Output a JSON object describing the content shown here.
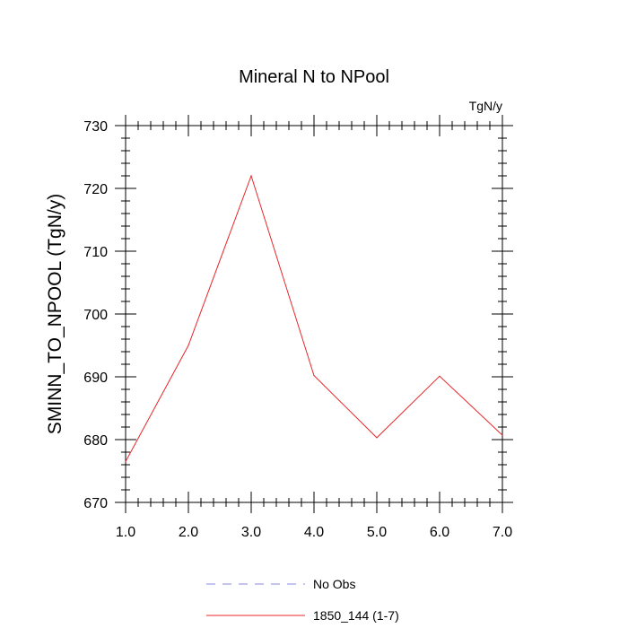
{
  "chart_data": {
    "type": "line",
    "title": "Mineral N to NPool",
    "units_label": "TgN/y",
    "ylabel": "SMINN_TO_NPOOL  (TgN/y)",
    "xlabel": "",
    "xlim": [
      1,
      7
    ],
    "ylim": [
      670,
      730
    ],
    "x_ticks": [
      1,
      2,
      3,
      4,
      5,
      6,
      7
    ],
    "x_tick_labels": [
      "1.0",
      "2.0",
      "3.0",
      "4.0",
      "5.0",
      "6.0",
      "7.0"
    ],
    "y_ticks": [
      670,
      680,
      690,
      700,
      710,
      720,
      730
    ],
    "y_tick_labels": [
      "670",
      "680",
      "690",
      "700",
      "710",
      "720",
      "730"
    ],
    "grid": false,
    "legend_placement": "bottom",
    "series": [
      {
        "name": "1850_144 (1-7)",
        "color": "#e8272a",
        "dash": "solid",
        "x": [
          1,
          2,
          3,
          4,
          5,
          6,
          7
        ],
        "values": [
          676.5,
          695.0,
          722.0,
          690.2,
          680.3,
          690.1,
          680.7
        ]
      }
    ],
    "legend": [
      {
        "label": "No Obs",
        "color": "#8a8ae6",
        "dash": "dashed"
      },
      {
        "label": "1850_144 (1-7)",
        "color": "#e8272a",
        "dash": "solid"
      }
    ]
  }
}
